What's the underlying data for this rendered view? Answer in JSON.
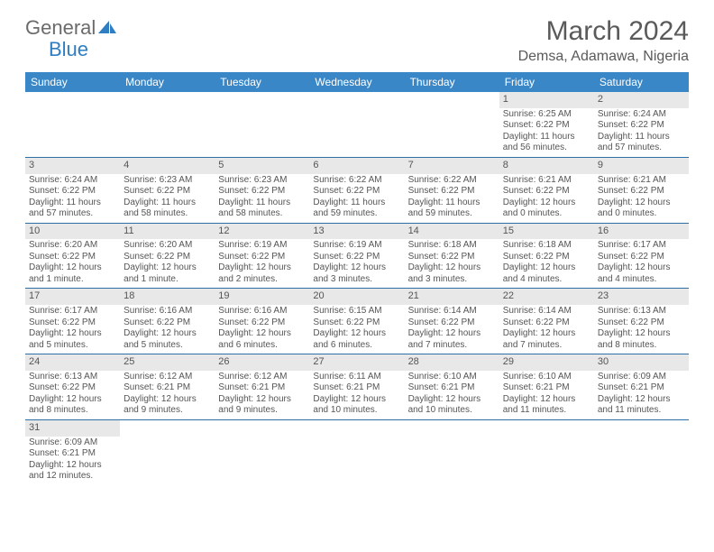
{
  "logo": {
    "text1": "General",
    "text2": "Blue",
    "sail_color": "#2f7ec2"
  },
  "title": "March 2024",
  "location": "Demsa, Adamawa, Nigeria",
  "colors": {
    "header_bg": "#3a87c8",
    "header_fg": "#ffffff",
    "row_divider": "#2f6fa8",
    "daynum_bg": "#e8e8e8",
    "text": "#555555"
  },
  "weekdays": [
    "Sunday",
    "Monday",
    "Tuesday",
    "Wednesday",
    "Thursday",
    "Friday",
    "Saturday"
  ],
  "weeks": [
    [
      {
        "n": "",
        "sr": "",
        "ss": "",
        "dl": ""
      },
      {
        "n": "",
        "sr": "",
        "ss": "",
        "dl": ""
      },
      {
        "n": "",
        "sr": "",
        "ss": "",
        "dl": ""
      },
      {
        "n": "",
        "sr": "",
        "ss": "",
        "dl": ""
      },
      {
        "n": "",
        "sr": "",
        "ss": "",
        "dl": ""
      },
      {
        "n": "1",
        "sr": "Sunrise: 6:25 AM",
        "ss": "Sunset: 6:22 PM",
        "dl": "Daylight: 11 hours and 56 minutes."
      },
      {
        "n": "2",
        "sr": "Sunrise: 6:24 AM",
        "ss": "Sunset: 6:22 PM",
        "dl": "Daylight: 11 hours and 57 minutes."
      }
    ],
    [
      {
        "n": "3",
        "sr": "Sunrise: 6:24 AM",
        "ss": "Sunset: 6:22 PM",
        "dl": "Daylight: 11 hours and 57 minutes."
      },
      {
        "n": "4",
        "sr": "Sunrise: 6:23 AM",
        "ss": "Sunset: 6:22 PM",
        "dl": "Daylight: 11 hours and 58 minutes."
      },
      {
        "n": "5",
        "sr": "Sunrise: 6:23 AM",
        "ss": "Sunset: 6:22 PM",
        "dl": "Daylight: 11 hours and 58 minutes."
      },
      {
        "n": "6",
        "sr": "Sunrise: 6:22 AM",
        "ss": "Sunset: 6:22 PM",
        "dl": "Daylight: 11 hours and 59 minutes."
      },
      {
        "n": "7",
        "sr": "Sunrise: 6:22 AM",
        "ss": "Sunset: 6:22 PM",
        "dl": "Daylight: 11 hours and 59 minutes."
      },
      {
        "n": "8",
        "sr": "Sunrise: 6:21 AM",
        "ss": "Sunset: 6:22 PM",
        "dl": "Daylight: 12 hours and 0 minutes."
      },
      {
        "n": "9",
        "sr": "Sunrise: 6:21 AM",
        "ss": "Sunset: 6:22 PM",
        "dl": "Daylight: 12 hours and 0 minutes."
      }
    ],
    [
      {
        "n": "10",
        "sr": "Sunrise: 6:20 AM",
        "ss": "Sunset: 6:22 PM",
        "dl": "Daylight: 12 hours and 1 minute."
      },
      {
        "n": "11",
        "sr": "Sunrise: 6:20 AM",
        "ss": "Sunset: 6:22 PM",
        "dl": "Daylight: 12 hours and 1 minute."
      },
      {
        "n": "12",
        "sr": "Sunrise: 6:19 AM",
        "ss": "Sunset: 6:22 PM",
        "dl": "Daylight: 12 hours and 2 minutes."
      },
      {
        "n": "13",
        "sr": "Sunrise: 6:19 AM",
        "ss": "Sunset: 6:22 PM",
        "dl": "Daylight: 12 hours and 3 minutes."
      },
      {
        "n": "14",
        "sr": "Sunrise: 6:18 AM",
        "ss": "Sunset: 6:22 PM",
        "dl": "Daylight: 12 hours and 3 minutes."
      },
      {
        "n": "15",
        "sr": "Sunrise: 6:18 AM",
        "ss": "Sunset: 6:22 PM",
        "dl": "Daylight: 12 hours and 4 minutes."
      },
      {
        "n": "16",
        "sr": "Sunrise: 6:17 AM",
        "ss": "Sunset: 6:22 PM",
        "dl": "Daylight: 12 hours and 4 minutes."
      }
    ],
    [
      {
        "n": "17",
        "sr": "Sunrise: 6:17 AM",
        "ss": "Sunset: 6:22 PM",
        "dl": "Daylight: 12 hours and 5 minutes."
      },
      {
        "n": "18",
        "sr": "Sunrise: 6:16 AM",
        "ss": "Sunset: 6:22 PM",
        "dl": "Daylight: 12 hours and 5 minutes."
      },
      {
        "n": "19",
        "sr": "Sunrise: 6:16 AM",
        "ss": "Sunset: 6:22 PM",
        "dl": "Daylight: 12 hours and 6 minutes."
      },
      {
        "n": "20",
        "sr": "Sunrise: 6:15 AM",
        "ss": "Sunset: 6:22 PM",
        "dl": "Daylight: 12 hours and 6 minutes."
      },
      {
        "n": "21",
        "sr": "Sunrise: 6:14 AM",
        "ss": "Sunset: 6:22 PM",
        "dl": "Daylight: 12 hours and 7 minutes."
      },
      {
        "n": "22",
        "sr": "Sunrise: 6:14 AM",
        "ss": "Sunset: 6:22 PM",
        "dl": "Daylight: 12 hours and 7 minutes."
      },
      {
        "n": "23",
        "sr": "Sunrise: 6:13 AM",
        "ss": "Sunset: 6:22 PM",
        "dl": "Daylight: 12 hours and 8 minutes."
      }
    ],
    [
      {
        "n": "24",
        "sr": "Sunrise: 6:13 AM",
        "ss": "Sunset: 6:22 PM",
        "dl": "Daylight: 12 hours and 8 minutes."
      },
      {
        "n": "25",
        "sr": "Sunrise: 6:12 AM",
        "ss": "Sunset: 6:21 PM",
        "dl": "Daylight: 12 hours and 9 minutes."
      },
      {
        "n": "26",
        "sr": "Sunrise: 6:12 AM",
        "ss": "Sunset: 6:21 PM",
        "dl": "Daylight: 12 hours and 9 minutes."
      },
      {
        "n": "27",
        "sr": "Sunrise: 6:11 AM",
        "ss": "Sunset: 6:21 PM",
        "dl": "Daylight: 12 hours and 10 minutes."
      },
      {
        "n": "28",
        "sr": "Sunrise: 6:10 AM",
        "ss": "Sunset: 6:21 PM",
        "dl": "Daylight: 12 hours and 10 minutes."
      },
      {
        "n": "29",
        "sr": "Sunrise: 6:10 AM",
        "ss": "Sunset: 6:21 PM",
        "dl": "Daylight: 12 hours and 11 minutes."
      },
      {
        "n": "30",
        "sr": "Sunrise: 6:09 AM",
        "ss": "Sunset: 6:21 PM",
        "dl": "Daylight: 12 hours and 11 minutes."
      }
    ],
    [
      {
        "n": "31",
        "sr": "Sunrise: 6:09 AM",
        "ss": "Sunset: 6:21 PM",
        "dl": "Daylight: 12 hours and 12 minutes."
      },
      {
        "n": "",
        "sr": "",
        "ss": "",
        "dl": ""
      },
      {
        "n": "",
        "sr": "",
        "ss": "",
        "dl": ""
      },
      {
        "n": "",
        "sr": "",
        "ss": "",
        "dl": ""
      },
      {
        "n": "",
        "sr": "",
        "ss": "",
        "dl": ""
      },
      {
        "n": "",
        "sr": "",
        "ss": "",
        "dl": ""
      },
      {
        "n": "",
        "sr": "",
        "ss": "",
        "dl": ""
      }
    ]
  ]
}
